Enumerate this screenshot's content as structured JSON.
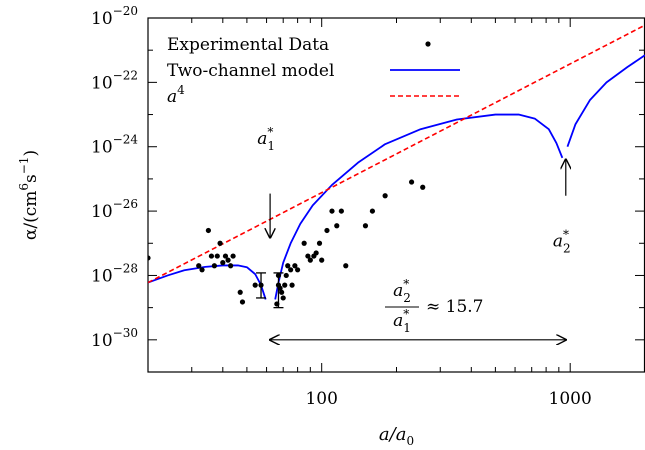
{
  "chart_data": {
    "type": "scatter",
    "xscale": "log",
    "yscale": "log",
    "xlim": [
      20,
      2000
    ],
    "ylim": [
      1e-31,
      1e-20
    ],
    "x_ticks": [
      {
        "value": 100,
        "label": "100"
      },
      {
        "value": 1000,
        "label": "1000"
      }
    ],
    "y_ticks": [
      {
        "value": 1e-20,
        "exp": "−20"
      },
      {
        "value": 1e-22,
        "exp": "−22"
      },
      {
        "value": 1e-24,
        "exp": "−24"
      },
      {
        "value": 1e-26,
        "exp": "−26"
      },
      {
        "value": 1e-28,
        "exp": "−28"
      },
      {
        "value": 1e-30,
        "exp": "−30"
      }
    ],
    "y_tick_base": "10",
    "xlabel": {
      "main": "a/a",
      "sub": "0"
    },
    "ylabel": {
      "text": "α/(cm",
      "exp1": "6",
      "mid": "s",
      "exp2": "−1",
      "end": ")"
    },
    "legend": {
      "placement": "top-left",
      "entries": [
        {
          "label": "Experimental Data",
          "style": "dot",
          "color": "#000000"
        },
        {
          "label": "Two-channel model",
          "style": "line",
          "color": "#0000ff"
        },
        {
          "label": "a",
          "label_exp": "4",
          "style": "dashed",
          "color": "#ff0000"
        }
      ]
    },
    "series": [
      {
        "name": "Experimental Data",
        "kind": "scatter",
        "color": "#000000",
        "points": [
          [
            20,
            3.5e-28
          ],
          [
            32,
            2e-28
          ],
          [
            33,
            1.5e-28
          ],
          [
            35,
            2.5e-27
          ],
          [
            36,
            4e-28
          ],
          [
            37,
            2e-28
          ],
          [
            38,
            4e-28
          ],
          [
            39,
            1e-27
          ],
          [
            40,
            2.5e-28
          ],
          [
            41,
            4e-28
          ],
          [
            42,
            3e-28
          ],
          [
            43,
            2e-28
          ],
          [
            44,
            4e-28
          ],
          [
            47,
            3e-29
          ],
          [
            48,
            1.5e-29
          ],
          [
            54,
            5e-29
          ],
          [
            66,
            1.3e-29
          ],
          [
            67,
            1e-28
          ],
          [
            68,
            4e-29
          ],
          [
            69,
            3e-29
          ],
          [
            70,
            2e-29
          ],
          [
            71,
            5e-29
          ],
          [
            72,
            1e-28
          ],
          [
            73,
            2e-28
          ],
          [
            75,
            1.5e-28
          ],
          [
            76,
            5e-29
          ],
          [
            78,
            2e-28
          ],
          [
            80,
            1.5e-28
          ],
          [
            85,
            1e-27
          ],
          [
            88,
            4e-28
          ],
          [
            90,
            3e-28
          ],
          [
            93,
            4e-28
          ],
          [
            95,
            5e-28
          ],
          [
            98,
            1e-27
          ],
          [
            100,
            3e-28
          ],
          [
            105,
            2.5e-27
          ],
          [
            110,
            1e-26
          ],
          [
            115,
            3.5e-27
          ],
          [
            120,
            1e-26
          ],
          [
            125,
            2e-28
          ],
          [
            150,
            3.5e-27
          ],
          [
            160,
            1e-26
          ],
          [
            180,
            3e-26
          ],
          [
            230,
            8e-26
          ],
          [
            255,
            5.5e-26
          ]
        ],
        "error_bars": [
          {
            "x": 57,
            "y": 5e-29,
            "low": 2e-29,
            "high": 1.2e-28
          },
          {
            "x": 67,
            "y": 5e-29,
            "low": 1e-29,
            "high": 1.2e-28
          }
        ]
      },
      {
        "name": "Two-channel model",
        "kind": "line",
        "color": "#0000ff",
        "segments": [
          [
            [
              20,
              6e-29
            ],
            [
              24,
              1e-28
            ],
            [
              28,
              1.45e-28
            ],
            [
              34,
              1.85e-28
            ],
            [
              40,
              2.05e-28
            ],
            [
              46,
              2.05e-28
            ],
            [
              50,
              1.8e-28
            ],
            [
              54,
              1.1e-28
            ],
            [
              57,
              5e-29
            ],
            [
              59.5,
              1.8e-29
            ]
          ],
          [
            [
              65,
              1.8e-29
            ],
            [
              67,
              6e-29
            ],
            [
              70,
              2.5e-28
            ],
            [
              75,
              1e-27
            ],
            [
              82,
              4e-27
            ],
            [
              92,
              1.5e-26
            ],
            [
              110,
              6.5e-26
            ],
            [
              140,
              3.2e-25
            ],
            [
              180,
              1.2e-24
            ],
            [
              250,
              3.5e-24
            ],
            [
              350,
              7e-24
            ],
            [
              500,
              1e-23
            ],
            [
              620,
              1e-23
            ],
            [
              720,
              7.5e-24
            ],
            [
              820,
              3.5e-24
            ],
            [
              880,
              1.3e-24
            ],
            [
              930,
              4.5e-25
            ]
          ],
          [
            [
              975,
              1e-24
            ],
            [
              1050,
              5e-24
            ],
            [
              1200,
              2.8e-23
            ],
            [
              1400,
              1e-22
            ],
            [
              1700,
              3e-22
            ],
            [
              2000,
              7e-22
            ]
          ]
        ]
      },
      {
        "name": "a^4",
        "kind": "dashed",
        "color": "#ff0000",
        "points": [
          [
            20,
            6e-29
          ],
          [
            2000,
            6e-21
          ]
        ]
      }
    ],
    "annotations": [
      {
        "id": "a1",
        "text": "a",
        "sup": "*",
        "sub": "1",
        "x": 62,
        "y_text": 1.2e-24,
        "arrow_from": 3.5e-26,
        "arrow_to": 1.5e-27
      },
      {
        "id": "a2",
        "text": "a",
        "sup": "*",
        "sub": "2",
        "x": 960,
        "y_text": 8e-28,
        "arrow_from": 3e-26,
        "arrow_to": 4e-25
      }
    ],
    "ratio_annotation": {
      "num": "a",
      "num_sup": "*",
      "num_sub": "2",
      "den": "a",
      "den_sup": "*",
      "den_sub": "1",
      "rhs": "≈ 15.7",
      "arrow_x_from": 62,
      "arrow_x_to": 960,
      "arrow_y": 1e-30
    }
  }
}
